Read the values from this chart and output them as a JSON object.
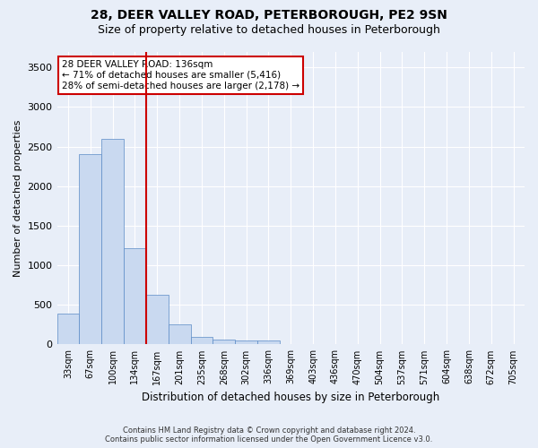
{
  "title": "28, DEER VALLEY ROAD, PETERBOROUGH, PE2 9SN",
  "subtitle": "Size of property relative to detached houses in Peterborough",
  "xlabel": "Distribution of detached houses by size in Peterborough",
  "ylabel": "Number of detached properties",
  "categories": [
    "33sqm",
    "67sqm",
    "100sqm",
    "134sqm",
    "167sqm",
    "201sqm",
    "235sqm",
    "268sqm",
    "302sqm",
    "336sqm",
    "369sqm",
    "403sqm",
    "436sqm",
    "470sqm",
    "504sqm",
    "537sqm",
    "571sqm",
    "604sqm",
    "638sqm",
    "672sqm",
    "705sqm"
  ],
  "values": [
    390,
    2400,
    2600,
    1220,
    630,
    250,
    100,
    60,
    55,
    50,
    0,
    0,
    0,
    0,
    0,
    0,
    0,
    0,
    0,
    0,
    0
  ],
  "bar_color": "#c9d9f0",
  "bar_edge_color": "#5a8ac6",
  "redline_bar_index": 3,
  "annotation_text": "28 DEER VALLEY ROAD: 136sqm\n← 71% of detached houses are smaller (5,416)\n28% of semi-detached houses are larger (2,178) →",
  "annotation_box_color": "#ffffff",
  "annotation_box_edge": "#cc0000",
  "redline_color": "#cc0000",
  "ylim": [
    0,
    3700
  ],
  "yticks": [
    0,
    500,
    1000,
    1500,
    2000,
    2500,
    3000,
    3500
  ],
  "footer_line1": "Contains HM Land Registry data © Crown copyright and database right 2024.",
  "footer_line2": "Contains public sector information licensed under the Open Government Licence v3.0.",
  "background_color": "#e8eef8",
  "plot_bg_color": "#e8eef8",
  "grid_color": "#ffffff",
  "title_fontsize": 10,
  "subtitle_fontsize": 9
}
